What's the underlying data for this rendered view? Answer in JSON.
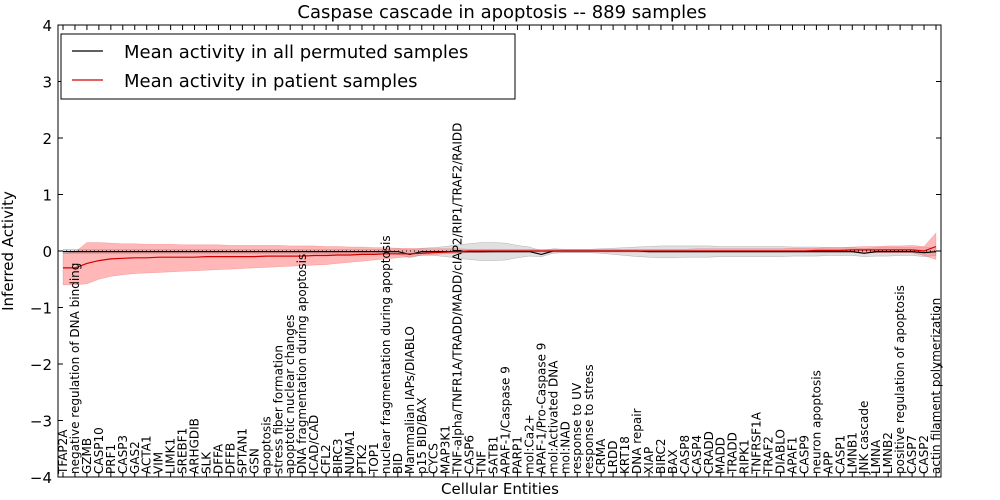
{
  "chart_data": {
    "type": "line",
    "title": "Caspase cascade in apoptosis -- 889 samples",
    "xlabel": "Cellular Entities",
    "ylabel": "Inferred Activity",
    "ylim": [
      -4,
      4
    ],
    "yticks": [
      -4,
      -3,
      -2,
      -1,
      0,
      1,
      2,
      3,
      4
    ],
    "ytick_labels": [
      "−4",
      "−3",
      "−2",
      "−1",
      "0",
      "1",
      "2",
      "3",
      "4"
    ],
    "grid": false,
    "legend_position": "top-left",
    "categories": [
      "TFAP2A",
      "negative regulation of DNA binding",
      "GZMB",
      "CASP10",
      "PRF1",
      "CASP3",
      "GAS2",
      "ACTA1",
      "VIM",
      "LIMK1",
      "SREBF1",
      "ARHGDIB",
      "SLK",
      "DFFA",
      "DFFB",
      "SPTAN1",
      "GSN",
      "apoptosis",
      "stress fiber formation",
      "apoptotic nuclear changes",
      "DNA fragmentation during apoptosis",
      "ICAD/CAD",
      "CFL2",
      "BIRC3",
      "NUMA1",
      "PTK2",
      "TOP1",
      "nuclear fragmentation during apoptosis",
      "BID",
      "Mammalian IAPs/DIABLO",
      "p15 BID/BAX",
      "CYCS",
      "MAP3K1",
      "TNF-alpha/TNFR1A/TRADD/MADD/cIAP2/RIP1/TRAF2/RAIDD",
      "CASP6",
      "TNF",
      "SATB1",
      "APAF-1/Caspase 9",
      "PARP1",
      "mol:Ca2+",
      "APAF-1/Pro-Caspase 9",
      "mol:Activated DNA",
      "mol:NAD",
      "response to UV",
      "response to stress",
      "CRMA",
      "LRDD",
      "KRT18",
      "DNA repair",
      "XIAP",
      "BIRC2",
      "BAX",
      "CASP8",
      "CASP4",
      "CRADD",
      "MADD",
      "TRADD",
      "RIPK1",
      "TNFRSF1A",
      "TRAF2",
      "DIABLO",
      "APAF1",
      "CASP9",
      "neuron apoptosis",
      "APP",
      "CASP1",
      "LMNB1",
      "JNK cascade",
      "LMNA",
      "LMNB2",
      "positive regulation of apoptosis",
      "CASP7",
      "CASP2",
      "actin filament polymerization"
    ],
    "series": [
      {
        "name": "Mean activity in all permuted samples",
        "color": "#000000",
        "band_color": "#bbbbbb",
        "values": [
          -0.01,
          -0.01,
          -0.01,
          -0.01,
          -0.01,
          -0.01,
          -0.01,
          -0.01,
          -0.01,
          -0.01,
          -0.01,
          -0.01,
          -0.01,
          -0.01,
          -0.01,
          -0.01,
          -0.01,
          -0.01,
          -0.01,
          -0.01,
          -0.01,
          -0.01,
          -0.01,
          -0.01,
          -0.01,
          -0.01,
          -0.01,
          -0.01,
          -0.01,
          -0.06,
          -0.01,
          -0.01,
          -0.01,
          -0.01,
          -0.01,
          -0.01,
          -0.01,
          -0.01,
          -0.01,
          -0.01,
          -0.06,
          0.0,
          0.0,
          0.0,
          0.0,
          0.0,
          0.0,
          0.0,
          0.0,
          -0.01,
          -0.01,
          -0.01,
          -0.01,
          -0.01,
          -0.01,
          -0.01,
          -0.01,
          -0.01,
          -0.01,
          -0.01,
          -0.01,
          -0.01,
          -0.01,
          -0.01,
          -0.01,
          -0.01,
          -0.01,
          -0.04,
          -0.01,
          -0.01,
          -0.01,
          -0.01,
          -0.03,
          -0.01
        ],
        "lower": [
          -0.05,
          -0.05,
          -0.05,
          -0.05,
          -0.05,
          -0.05,
          -0.05,
          -0.05,
          -0.05,
          -0.05,
          -0.05,
          -0.05,
          -0.05,
          -0.05,
          -0.05,
          -0.05,
          -0.05,
          -0.05,
          -0.05,
          -0.05,
          -0.05,
          -0.05,
          -0.05,
          -0.05,
          -0.05,
          -0.05,
          -0.05,
          -0.05,
          -0.06,
          -0.12,
          -0.07,
          -0.08,
          -0.1,
          -0.13,
          -0.15,
          -0.17,
          -0.17,
          -0.16,
          -0.12,
          -0.09,
          -0.1,
          -0.04,
          -0.03,
          -0.03,
          -0.03,
          -0.04,
          -0.06,
          -0.08,
          -0.1,
          -0.11,
          -0.12,
          -0.12,
          -0.11,
          -0.11,
          -0.11,
          -0.1,
          -0.1,
          -0.1,
          -0.1,
          -0.1,
          -0.1,
          -0.09,
          -0.09,
          -0.09,
          -0.08,
          -0.08,
          -0.08,
          -0.1,
          -0.09,
          -0.09,
          -0.08,
          -0.08,
          -0.1,
          -0.08
        ],
        "upper": [
          0.03,
          0.03,
          0.03,
          0.03,
          0.03,
          0.03,
          0.03,
          0.03,
          0.03,
          0.03,
          0.03,
          0.03,
          0.03,
          0.03,
          0.03,
          0.03,
          0.03,
          0.03,
          0.03,
          0.03,
          0.03,
          0.03,
          0.03,
          0.03,
          0.03,
          0.03,
          0.03,
          0.03,
          0.04,
          0.02,
          0.05,
          0.06,
          0.08,
          0.11,
          0.13,
          0.15,
          0.15,
          0.14,
          0.1,
          0.07,
          0.0,
          0.04,
          0.03,
          0.03,
          0.03,
          0.04,
          0.05,
          0.06,
          0.07,
          0.08,
          0.09,
          0.09,
          0.09,
          0.09,
          0.09,
          0.08,
          0.08,
          0.08,
          0.08,
          0.08,
          0.08,
          0.07,
          0.07,
          0.07,
          0.06,
          0.06,
          0.06,
          0.04,
          0.06,
          0.06,
          0.06,
          0.06,
          0.06,
          0.06
        ]
      },
      {
        "name": "Mean activity in patient samples",
        "color": "#d00000",
        "band_color": "#ff7070",
        "values": [
          -0.3,
          -0.3,
          -0.22,
          -0.17,
          -0.14,
          -0.13,
          -0.12,
          -0.12,
          -0.11,
          -0.11,
          -0.11,
          -0.11,
          -0.1,
          -0.1,
          -0.1,
          -0.1,
          -0.1,
          -0.09,
          -0.09,
          -0.09,
          -0.09,
          -0.08,
          -0.08,
          -0.07,
          -0.07,
          -0.06,
          -0.06,
          -0.05,
          -0.05,
          -0.05,
          -0.04,
          -0.03,
          -0.02,
          -0.01,
          0.0,
          0.0,
          0.0,
          0.0,
          0.0,
          0.0,
          0.0,
          0.0,
          0.0,
          0.0,
          0.0,
          0.0,
          0.0,
          0.0,
          0.0,
          0.0,
          0.0,
          0.0,
          0.0,
          0.0,
          0.0,
          0.0,
          0.0,
          0.0,
          0.0,
          0.0,
          0.0,
          0.0,
          0.0,
          0.01,
          0.01,
          0.01,
          0.02,
          0.02,
          0.02,
          0.02,
          0.02,
          0.02,
          0.0,
          0.08
        ],
        "lower": [
          -0.6,
          -0.6,
          -0.58,
          -0.5,
          -0.45,
          -0.42,
          -0.4,
          -0.39,
          -0.38,
          -0.37,
          -0.36,
          -0.35,
          -0.34,
          -0.33,
          -0.32,
          -0.31,
          -0.3,
          -0.29,
          -0.28,
          -0.27,
          -0.26,
          -0.25,
          -0.24,
          -0.22,
          -0.2,
          -0.18,
          -0.16,
          -0.14,
          -0.12,
          -0.1,
          -0.08,
          -0.06,
          -0.05,
          -0.04,
          -0.03,
          -0.03,
          -0.02,
          -0.02,
          -0.02,
          -0.02,
          -0.02,
          -0.02,
          -0.02,
          -0.02,
          -0.02,
          -0.02,
          -0.02,
          -0.02,
          -0.02,
          -0.02,
          -0.02,
          -0.02,
          -0.02,
          -0.02,
          -0.02,
          -0.02,
          -0.02,
          -0.02,
          -0.02,
          -0.02,
          -0.02,
          -0.02,
          -0.02,
          -0.02,
          -0.02,
          -0.02,
          -0.02,
          -0.03,
          -0.03,
          -0.03,
          -0.03,
          -0.03,
          -0.08,
          -0.15
        ],
        "upper": [
          -0.05,
          -0.02,
          0.15,
          0.15,
          0.14,
          0.13,
          0.13,
          0.12,
          0.12,
          0.12,
          0.11,
          0.11,
          0.11,
          0.11,
          0.1,
          0.1,
          0.1,
          0.1,
          0.1,
          0.09,
          0.09,
          0.09,
          0.08,
          0.08,
          0.07,
          0.07,
          0.06,
          0.06,
          0.05,
          0.05,
          0.04,
          0.04,
          0.04,
          0.04,
          0.03,
          0.03,
          0.03,
          0.03,
          0.03,
          0.03,
          0.03,
          0.03,
          0.03,
          0.03,
          0.03,
          0.03,
          0.03,
          0.03,
          0.03,
          0.03,
          0.03,
          0.03,
          0.03,
          0.04,
          0.04,
          0.04,
          0.04,
          0.04,
          0.04,
          0.04,
          0.04,
          0.05,
          0.05,
          0.05,
          0.06,
          0.06,
          0.07,
          0.08,
          0.08,
          0.09,
          0.09,
          0.1,
          0.08,
          0.32
        ]
      }
    ],
    "reference_line": {
      "y": 0,
      "style": "dotted"
    }
  }
}
